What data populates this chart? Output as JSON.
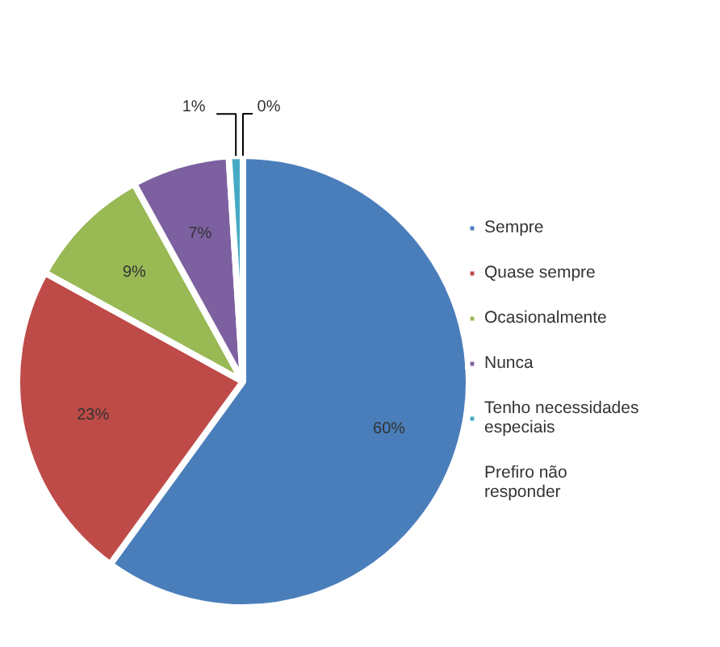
{
  "chart_data": {
    "type": "pie",
    "categories": [
      "Sempre",
      "Quase sempre",
      "Ocasionalmente",
      "Nunca",
      "Tenho necessidades especiais",
      "Prefiro não responder"
    ],
    "values": [
      60,
      23,
      9,
      7,
      1,
      0
    ],
    "colors": [
      "#4a7ebb",
      "#be4b48",
      "#98b954",
      "#7d60a0",
      "#46aac5",
      "#f79646"
    ],
    "value_labels": [
      "60%",
      "23%",
      "9%",
      "7%",
      "1%",
      "0%"
    ],
    "legend": "right"
  }
}
